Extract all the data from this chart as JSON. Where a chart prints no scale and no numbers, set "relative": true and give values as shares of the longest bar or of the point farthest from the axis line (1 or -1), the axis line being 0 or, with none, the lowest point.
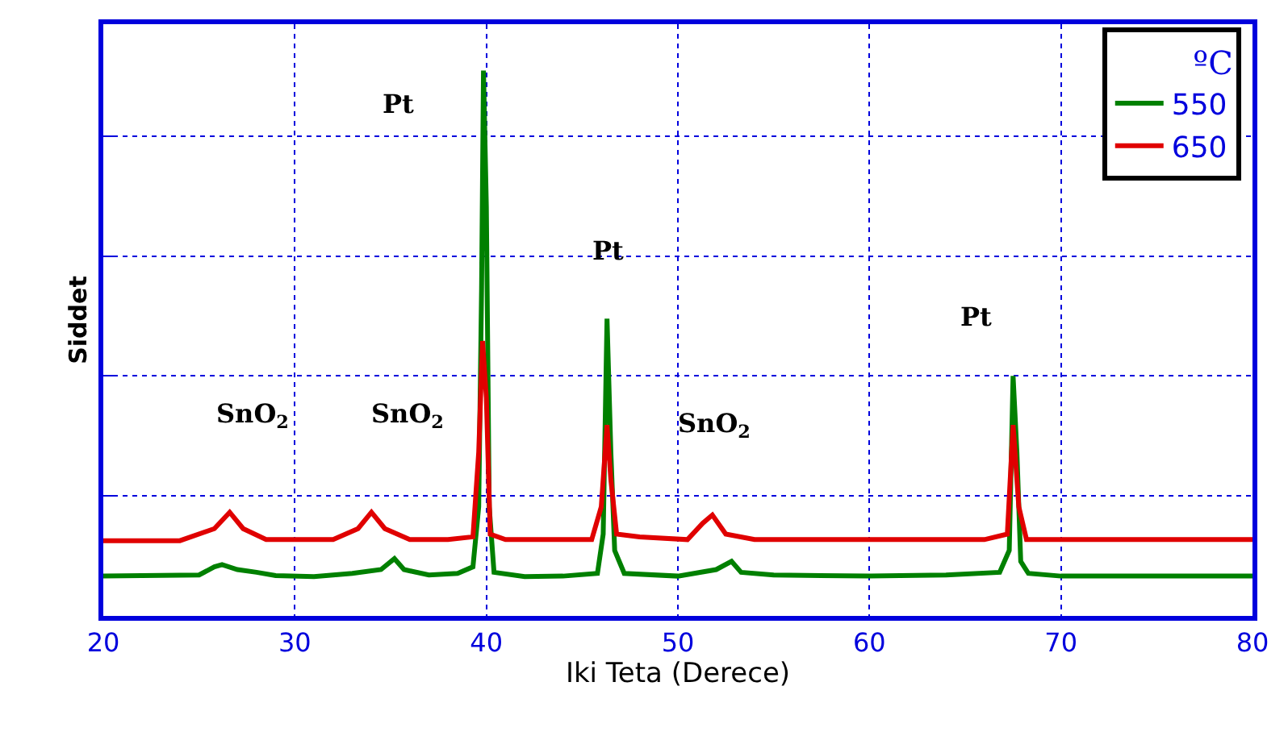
{
  "chart_data": {
    "type": "line",
    "relative": true,
    "xlabel": "Iki Teta (Derece)",
    "ylabel": "Siddet",
    "xlim": [
      20,
      80
    ],
    "xticks": [
      20,
      30,
      40,
      50,
      60,
      70,
      80
    ],
    "grid": true,
    "legend": "top right",
    "marker": "none",
    "line_style": "solid",
    "legend_title": "ºC",
    "series": [
      {
        "name": "550",
        "color": "#008000",
        "x": [
          20,
          25,
          25.8,
          26.2,
          27,
          28,
          29,
          31,
          33,
          34.5,
          35.2,
          35.7,
          37,
          38.5,
          39.3,
          39.6,
          39.75,
          39.85,
          40.0,
          40.15,
          40.4,
          42,
          44,
          45.8,
          46.1,
          46.3,
          46.5,
          46.7,
          47.2,
          50,
          52,
          52.8,
          53.3,
          55,
          60,
          64,
          66.8,
          67.3,
          67.5,
          67.7,
          67.9,
          68.3,
          70,
          75,
          80
        ],
        "values": [
          0.073,
          0.075,
          0.09,
          0.094,
          0.085,
          0.08,
          0.074,
          0.072,
          0.078,
          0.085,
          0.105,
          0.085,
          0.075,
          0.078,
          0.09,
          0.2,
          0.6,
          1.0,
          0.75,
          0.2,
          0.08,
          0.072,
          0.073,
          0.078,
          0.15,
          0.545,
          0.3,
          0.12,
          0.078,
          0.073,
          0.085,
          0.1,
          0.08,
          0.075,
          0.073,
          0.075,
          0.08,
          0.12,
          0.44,
          0.3,
          0.1,
          0.078,
          0.073,
          0.073,
          0.073
        ]
      },
      {
        "name": "650",
        "color": "#e00000",
        "x": [
          20,
          24,
          25.8,
          26.6,
          27.3,
          28.5,
          32,
          33.3,
          34,
          34.7,
          36,
          38,
          39.3,
          39.6,
          39.8,
          40.0,
          40.2,
          41,
          45.5,
          46.0,
          46.3,
          46.5,
          46.8,
          48,
          50.5,
          51.3,
          51.8,
          52.5,
          54,
          60,
          66,
          67.2,
          67.5,
          67.8,
          68.2,
          75,
          80
        ],
        "values": [
          0.138,
          0.138,
          0.16,
          0.19,
          0.16,
          0.14,
          0.14,
          0.16,
          0.19,
          0.16,
          0.14,
          0.14,
          0.145,
          0.3,
          0.504,
          0.4,
          0.15,
          0.14,
          0.14,
          0.2,
          0.35,
          0.25,
          0.15,
          0.145,
          0.14,
          0.17,
          0.185,
          0.15,
          0.14,
          0.14,
          0.14,
          0.15,
          0.35,
          0.2,
          0.14,
          0.14,
          0.14
        ]
      }
    ],
    "annotations": [
      "Pt",
      "Pt",
      "Pt",
      "SnO$_{2}$",
      "SnO$_{2}$",
      "SnO$_{2}$"
    ]
  }
}
